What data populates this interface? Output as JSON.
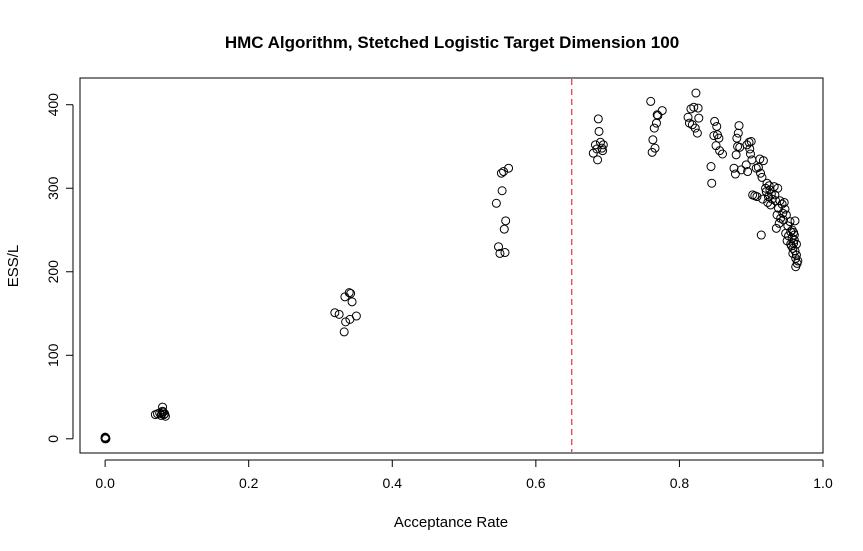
{
  "chart_data": {
    "type": "scatter",
    "title": "HMC Algorithm, Stetched Logistic Target Dimension 100",
    "xlabel": "Acceptance Rate",
    "ylabel": "ESS/L",
    "xlim": [
      -0.035,
      1.0
    ],
    "ylim": [
      -17,
      432
    ],
    "xticks": [
      "0.0",
      "0.2",
      "0.4",
      "0.6",
      "0.8",
      "1.0"
    ],
    "xtick_values": [
      0,
      0.2,
      0.4,
      0.6,
      0.8,
      1.0
    ],
    "yticks": [
      "0",
      "100",
      "200",
      "300",
      "400"
    ],
    "ytick_values": [
      0,
      100,
      200,
      300,
      400
    ],
    "reference_line": {
      "x": 0.65,
      "color": "#e0323c",
      "style": "dashed"
    },
    "grid": false,
    "marker": "open-circle",
    "points": [
      [
        0.0,
        0
      ],
      [
        0.0,
        1
      ],
      [
        0.001,
        0
      ],
      [
        0.0,
        2
      ],
      [
        0.001,
        1
      ],
      [
        0.07,
        29
      ],
      [
        0.073,
        30
      ],
      [
        0.076,
        31
      ],
      [
        0.078,
        28
      ],
      [
        0.08,
        33
      ],
      [
        0.08,
        38
      ],
      [
        0.082,
        29
      ],
      [
        0.084,
        27
      ],
      [
        0.079,
        30
      ],
      [
        0.081,
        32
      ],
      [
        0.083,
        30
      ],
      [
        0.32,
        151
      ],
      [
        0.326,
        149
      ],
      [
        0.334,
        170
      ],
      [
        0.34,
        175
      ],
      [
        0.342,
        174
      ],
      [
        0.344,
        164
      ],
      [
        0.333,
        128
      ],
      [
        0.335,
        140
      ],
      [
        0.341,
        143
      ],
      [
        0.35,
        147
      ],
      [
        0.545,
        282
      ],
      [
        0.548,
        230
      ],
      [
        0.55,
        222
      ],
      [
        0.552,
        318
      ],
      [
        0.553,
        297
      ],
      [
        0.555,
        320
      ],
      [
        0.556,
        251
      ],
      [
        0.557,
        223
      ],
      [
        0.558,
        261
      ],
      [
        0.562,
        324
      ],
      [
        0.68,
        342
      ],
      [
        0.683,
        352
      ],
      [
        0.685,
        347
      ],
      [
        0.686,
        334
      ],
      [
        0.687,
        383
      ],
      [
        0.688,
        368
      ],
      [
        0.69,
        355
      ],
      [
        0.692,
        348
      ],
      [
        0.693,
        345
      ],
      [
        0.694,
        352
      ],
      [
        0.76,
        404
      ],
      [
        0.762,
        343
      ],
      [
        0.763,
        358
      ],
      [
        0.765,
        372
      ],
      [
        0.766,
        348
      ],
      [
        0.768,
        378
      ],
      [
        0.769,
        388
      ],
      [
        0.77,
        387
      ],
      [
        0.776,
        393
      ],
      [
        0.812,
        385
      ],
      [
        0.814,
        378
      ],
      [
        0.816,
        395
      ],
      [
        0.818,
        376
      ],
      [
        0.82,
        397
      ],
      [
        0.822,
        372
      ],
      [
        0.823,
        414
      ],
      [
        0.825,
        366
      ],
      [
        0.826,
        396
      ],
      [
        0.827,
        384
      ],
      [
        0.844,
        326
      ],
      [
        0.845,
        306
      ],
      [
        0.848,
        363
      ],
      [
        0.849,
        380
      ],
      [
        0.851,
        351
      ],
      [
        0.852,
        374
      ],
      [
        0.853,
        364
      ],
      [
        0.855,
        360
      ],
      [
        0.856,
        345
      ],
      [
        0.86,
        341
      ],
      [
        0.876,
        324
      ],
      [
        0.878,
        317
      ],
      [
        0.879,
        340
      ],
      [
        0.88,
        360
      ],
      [
        0.881,
        350
      ],
      [
        0.882,
        366
      ],
      [
        0.883,
        375
      ],
      [
        0.884,
        349
      ],
      [
        0.886,
        322
      ],
      [
        0.893,
        328
      ],
      [
        0.894,
        352
      ],
      [
        0.895,
        320
      ],
      [
        0.897,
        355
      ],
      [
        0.898,
        347
      ],
      [
        0.899,
        341
      ],
      [
        0.9,
        356
      ],
      [
        0.901,
        334
      ],
      [
        0.902,
        292
      ],
      [
        0.905,
        291
      ],
      [
        0.907,
        324
      ],
      [
        0.908,
        290
      ],
      [
        0.91,
        325
      ],
      [
        0.912,
        335
      ],
      [
        0.913,
        318
      ],
      [
        0.914,
        244
      ],
      [
        0.915,
        313
      ],
      [
        0.916,
        287
      ],
      [
        0.917,
        333
      ],
      [
        0.92,
        300
      ],
      [
        0.921,
        296
      ],
      [
        0.922,
        306
      ],
      [
        0.923,
        283
      ],
      [
        0.924,
        290
      ],
      [
        0.925,
        303
      ],
      [
        0.926,
        298
      ],
      [
        0.927,
        280
      ],
      [
        0.928,
        293
      ],
      [
        0.929,
        287
      ],
      [
        0.932,
        302
      ],
      [
        0.933,
        292
      ],
      [
        0.934,
        285
      ],
      [
        0.935,
        252
      ],
      [
        0.936,
        268
      ],
      [
        0.937,
        300
      ],
      [
        0.938,
        276
      ],
      [
        0.939,
        258
      ],
      [
        0.94,
        285
      ],
      [
        0.941,
        264
      ],
      [
        0.943,
        281
      ],
      [
        0.944,
        270
      ],
      [
        0.945,
        262
      ],
      [
        0.946,
        283
      ],
      [
        0.947,
        275
      ],
      [
        0.948,
        246
      ],
      [
        0.949,
        268
      ],
      [
        0.95,
        237
      ],
      [
        0.951,
        255
      ],
      [
        0.952,
        243
      ],
      [
        0.954,
        260
      ],
      [
        0.955,
        248
      ],
      [
        0.956,
        231
      ],
      [
        0.957,
        240
      ],
      [
        0.958,
        228
      ],
      [
        0.959,
        247
      ],
      [
        0.96,
        244
      ],
      [
        0.961,
        225
      ],
      [
        0.962,
        216
      ],
      [
        0.963,
        233
      ],
      [
        0.955,
        233
      ],
      [
        0.958,
        222
      ],
      [
        0.96,
        238
      ],
      [
        0.961,
        261
      ],
      [
        0.962,
        206
      ],
      [
        0.963,
        220
      ],
      [
        0.964,
        210
      ],
      [
        0.965,
        213
      ],
      [
        0.957,
        250
      ],
      [
        0.959,
        234
      ]
    ]
  }
}
